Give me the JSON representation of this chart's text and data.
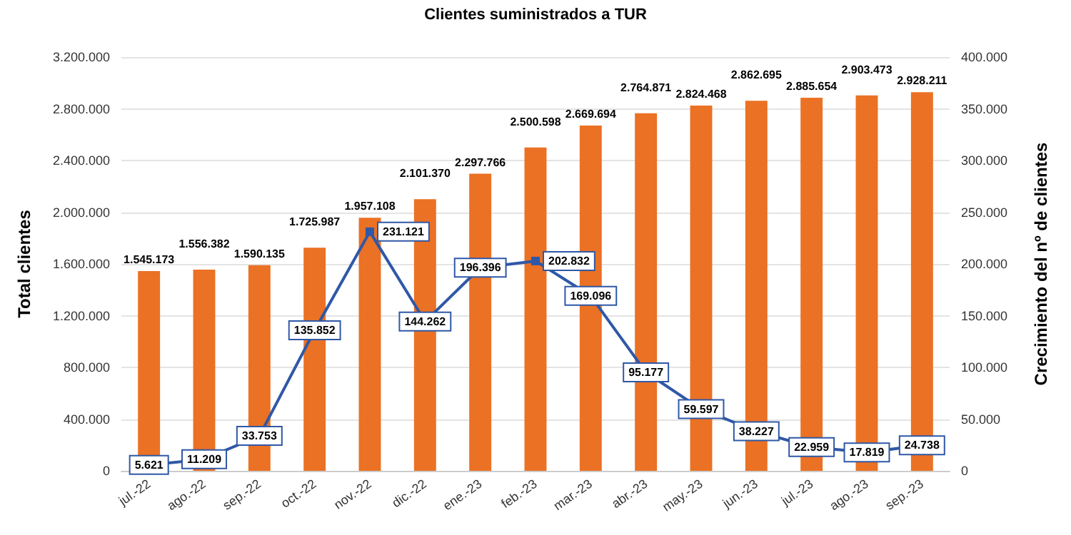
{
  "chart_data": {
    "type": "bar",
    "title": "Clientes suministrados a TUR",
    "ylabel": "Total clientes",
    "y2label": "Crecimiento del nº de clientes",
    "categories": [
      "jul.-22",
      "ago.-22",
      "sep.-22",
      "oct.-22",
      "nov.-22",
      "dic.-22",
      "ene.-23",
      "feb.-23",
      "mar.-23",
      "abr.-23",
      "may.-23",
      "jun.-23",
      "jul.-23",
      "ago.-23",
      "sep.-23"
    ],
    "series": [
      {
        "color": "#eb7124",
        "values": [
          1545173,
          1556382,
          1590135,
          1725987,
          1957108,
          2101370,
          2297766,
          2500598,
          2669694,
          2764871,
          2824468,
          2862695,
          2885654,
          2903473,
          2928211
        ],
        "value_labels": [
          "1.545.173",
          "1.556.382",
          "1.590.135",
          "1.725.987",
          "1.957.108",
          "2.101.370",
          "2.297.766",
          "2.500.598",
          "2.669.694",
          "2.764.871",
          "2.824.468",
          "2.862.695",
          "2.885.654",
          "2.903.473",
          "2.928.211"
        ]
      },
      {
        "type": "line",
        "axis": "y2",
        "color": "#2f58a6",
        "marker": "square",
        "values": [
          5621,
          11209,
          33753,
          135852,
          231121,
          144262,
          196396,
          202832,
          169096,
          95177,
          59597,
          38227,
          22959,
          17819,
          24738
        ],
        "value_labels": [
          "5.621",
          "11.209",
          "33.753",
          "135.852",
          "231.121",
          "144.262",
          "196.396",
          "202.832",
          "169.096",
          "95.177",
          "59.597",
          "38.227",
          "22.959",
          "17.819",
          "24.738"
        ]
      }
    ],
    "ylim": [
      0,
      3200000
    ],
    "yticks": [
      {
        "value": 0,
        "label": "0"
      },
      {
        "value": 400000,
        "label": "400.000"
      },
      {
        "value": 800000,
        "label": "800.000"
      },
      {
        "value": 1200000,
        "label": "1.200.000"
      },
      {
        "value": 1600000,
        "label": "1.600.000"
      },
      {
        "value": 2000000,
        "label": "2.000.000"
      },
      {
        "value": 2400000,
        "label": "2.400.000"
      },
      {
        "value": 2800000,
        "label": "2.800.000"
      },
      {
        "value": 3200000,
        "label": "3.200.000"
      }
    ],
    "y2lim": [
      0,
      400000
    ],
    "y2ticks": [
      {
        "value": 0,
        "label": "0"
      },
      {
        "value": 50000,
        "label": "50.000"
      },
      {
        "value": 100000,
        "label": "100.000"
      },
      {
        "value": 150000,
        "label": "150.000"
      },
      {
        "value": 200000,
        "label": "200.000"
      },
      {
        "value": 250000,
        "label": "250.000"
      },
      {
        "value": 300000,
        "label": "300.000"
      },
      {
        "value": 350000,
        "label": "350.000"
      },
      {
        "value": 400000,
        "label": "400.000"
      }
    ],
    "grid": "y"
  }
}
